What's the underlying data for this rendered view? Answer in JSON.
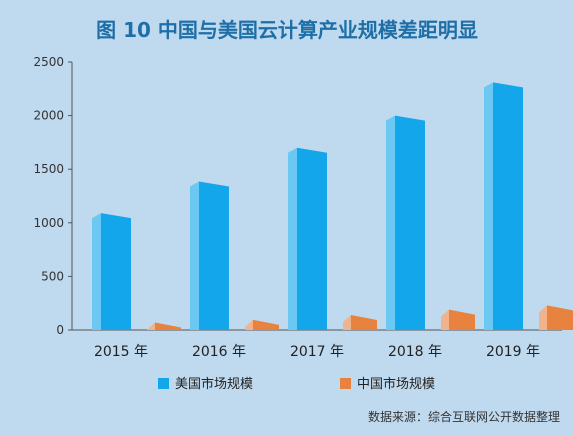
{
  "title": "图 10  中国与美国云计算产业规模差距明显",
  "source": "数据来源：综合互联网公开数据整理",
  "colors": {
    "us_front": "#14a6ea",
    "us_side": "#6bc8f2",
    "cn_front": "#e8823f",
    "cn_side": "#f0b48c",
    "axis": "#555555"
  },
  "chart_data": {
    "type": "bar",
    "title": "图 10  中国与美国云计算产业规模差距明显",
    "categories": [
      "2015 年",
      "2016 年",
      "2017 年",
      "2018 年",
      "2019 年"
    ],
    "series": [
      {
        "name": "美国市场规模",
        "values": [
          1090,
          1385,
          1700,
          2000,
          2310
        ]
      },
      {
        "name": "中国市场规模",
        "values": [
          70,
          95,
          140,
          190,
          230
        ]
      }
    ],
    "ylim": [
      0,
      2500
    ],
    "yticks": [
      0,
      500,
      1000,
      1500,
      2000,
      2500
    ],
    "legend_position": "bottom",
    "grid": false
  }
}
